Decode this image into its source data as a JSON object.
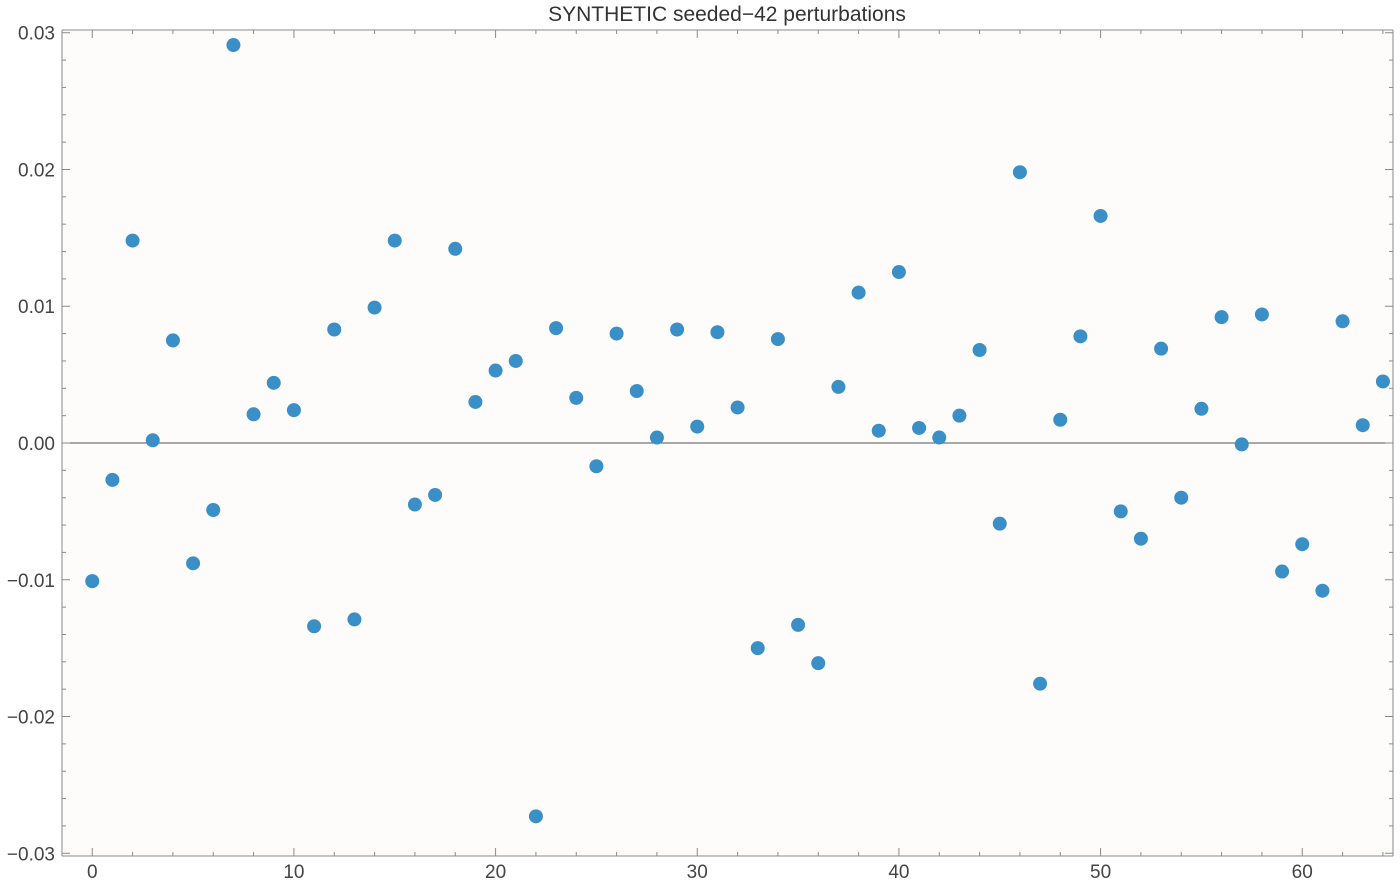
{
  "chart_data": {
    "type": "scatter",
    "title": "SYNTHETIC seeded−42 perturbations",
    "xlabel": "",
    "ylabel": "",
    "xlim": [
      -1.5,
      64.5
    ],
    "ylim": [
      -0.0302,
      0.0302
    ],
    "x_ticks": [
      0,
      10,
      20,
      30,
      40,
      50,
      60
    ],
    "x_tick_labels": [
      "0",
      "10",
      "20",
      "30",
      "40",
      "50",
      "60"
    ],
    "y_ticks": [
      0.03,
      0.02,
      0.01,
      0.0,
      -0.01,
      -0.02,
      -0.03
    ],
    "y_tick_labels": [
      "0.03",
      "0.02",
      "0.01",
      "0.00",
      "−0.01",
      "−0.02",
      "−0.03"
    ],
    "grid": false,
    "zero_line": true,
    "point_color": "#3a8fc6",
    "series": [
      {
        "x": [
          0,
          1,
          2,
          3,
          4,
          5,
          6,
          7,
          8,
          9,
          10,
          11,
          12,
          13,
          14,
          15,
          16,
          17,
          18,
          19,
          20,
          21,
          22,
          23,
          24,
          25,
          26,
          27,
          28,
          29,
          30,
          31,
          32,
          33,
          34,
          35,
          36,
          37,
          38,
          39,
          40,
          41,
          42,
          43,
          44,
          45,
          46,
          47,
          48,
          49,
          50,
          51,
          52,
          53,
          54,
          55,
          56,
          57,
          58,
          59,
          60,
          61,
          62,
          63,
          64
        ],
        "values": [
          -0.0101,
          -0.0027,
          0.0148,
          0.0002,
          0.0075,
          -0.0088,
          -0.0049,
          0.0291,
          0.0021,
          0.0044,
          0.0024,
          -0.0134,
          0.0083,
          -0.0129,
          0.0099,
          0.0148,
          -0.0045,
          -0.0038,
          0.0142,
          0.003,
          0.0053,
          0.006,
          -0.0273,
          0.0084,
          0.0033,
          -0.0017,
          0.008,
          0.0038,
          0.0004,
          0.0083,
          0.0012,
          0.0081,
          0.0026,
          -0.015,
          0.0076,
          -0.0133,
          -0.0161,
          0.0041,
          0.011,
          0.0009,
          0.0125,
          0.0011,
          0.0004,
          0.002,
          0.0068,
          -0.0059,
          0.0198,
          -0.0176,
          0.0017,
          0.0078,
          0.0166,
          -0.005,
          -0.007,
          0.0069,
          -0.004,
          0.0025,
          0.0092,
          -0.0001,
          0.0094,
          -0.0094,
          -0.0074,
          -0.0108,
          0.0089,
          0.0013,
          0.0045
        ]
      }
    ]
  }
}
